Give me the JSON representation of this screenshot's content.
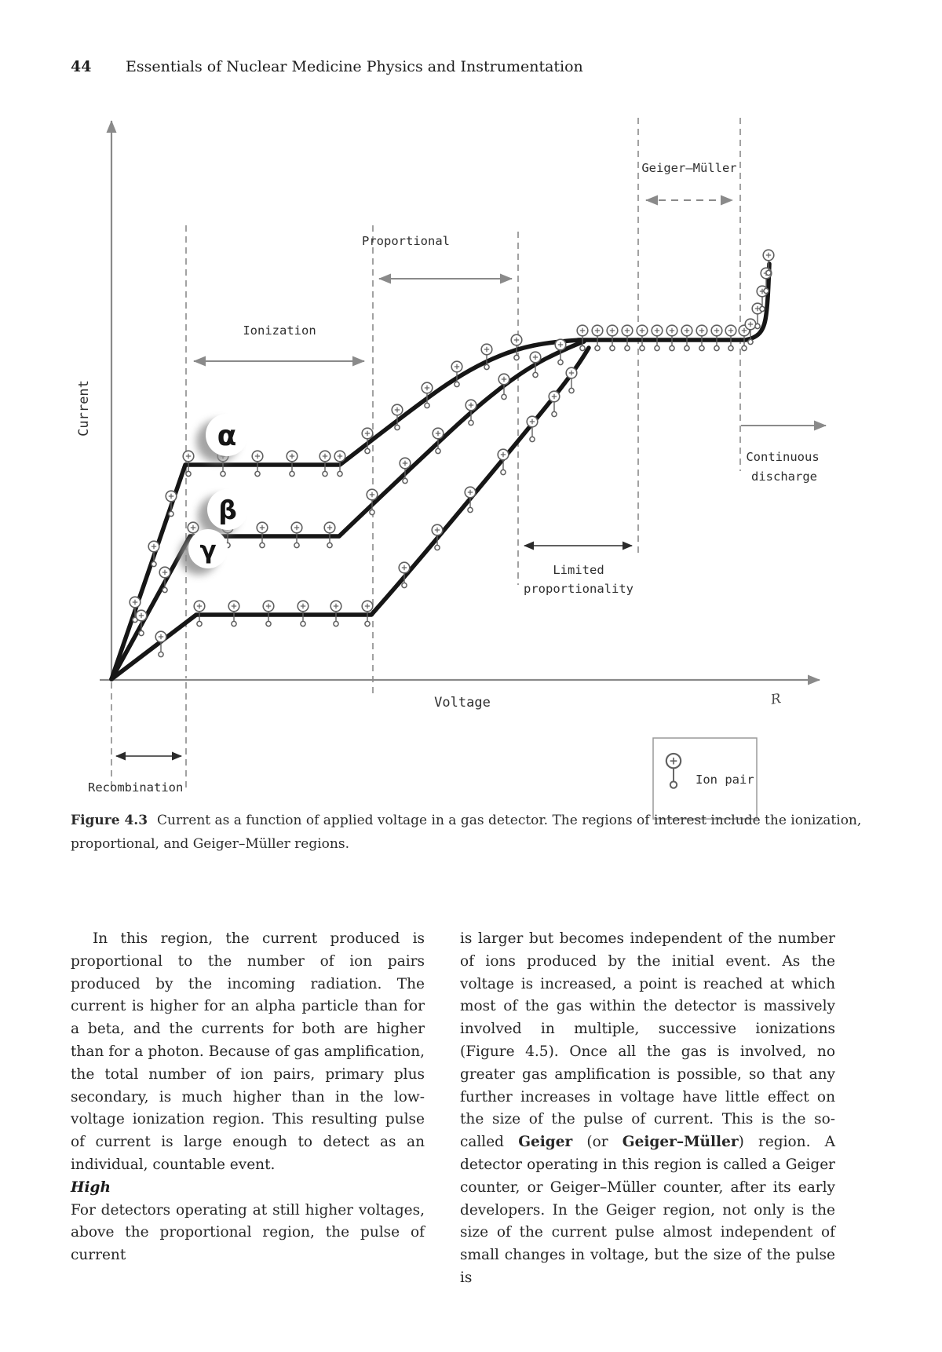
{
  "header": {
    "page_number": "44",
    "running_title": "Essentials of Nuclear Medicine Physics and Instrumentation"
  },
  "figure": {
    "y_axis_label": "Current",
    "x_axis_label": "Voltage",
    "axis_end_mark": "R",
    "regions": {
      "recombination": "Recombination",
      "ionization": "Ionization",
      "proportional": "Proportional",
      "limited_proportionality": [
        "Limited",
        "proportionality"
      ],
      "geiger_muller": "Geiger–Müller",
      "continuous_discharge": [
        "Continuous",
        "discharge"
      ]
    },
    "curves": [
      {
        "label": "α"
      },
      {
        "label": "β"
      },
      {
        "label": "γ"
      }
    ],
    "legend": {
      "ion_pair_label": "Ion pair"
    }
  },
  "caption": {
    "label": "Figure 4.3",
    "text": "Current as a function of applied voltage in a gas detector. The regions of interest include the ionization, proportional, and Geiger–Müller regions."
  },
  "body": {
    "left_column": {
      "p1": "In this region, the current produced is proportional to the number of ion pairs produced by the incoming radiation. The current is higher for an alpha particle than for a beta, and the currents for both are higher than for a photon. Because of gas amplification, the total number of ion pairs, primary plus secondary, is much higher than in the low-voltage ionization region. This resulting pulse of current is large enough to detect as an individual, countable event.",
      "heading": "High",
      "p2": "For detectors operating at still higher voltages, above the proportional region, the pulse of current"
    },
    "right_column": {
      "parts": [
        {
          "text": "is larger but becomes independent of the number of ions produced by the initial event. As the voltage is increased, a point is reached at which most of the gas within the detector is massively involved in multiple, successive ionizations (Figure 4.5). Once all the gas is involved, no greater gas amplification is possible, so that any further increases in voltage have little effect on the size of the pulse of current. This is the so-called ",
          "bold": false
        },
        {
          "text": "Geiger",
          "bold": true
        },
        {
          "text": " (or ",
          "bold": false
        },
        {
          "text": "Geiger–Müller",
          "bold": true
        },
        {
          "text": ") region. A detector operating in this region is called a Geiger counter, or Geiger–Müller counter, after its early developers. In the Geiger region, not only is the size of the current pulse almost independent of small changes in voltage, but the size of the pulse is",
          "bold": false
        }
      ]
    }
  }
}
